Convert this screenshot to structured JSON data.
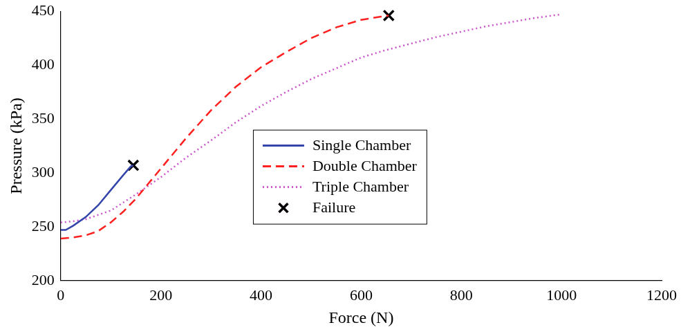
{
  "chart_data": {
    "type": "line",
    "x_label": "Force (N)",
    "y_label": "Pressure (kPa)",
    "xlim": [
      0,
      1200
    ],
    "xticks": [
      0,
      200,
      400,
      600,
      800,
      1000,
      1200
    ],
    "ylim": [
      200,
      450
    ],
    "yticks": [
      200,
      250,
      300,
      350,
      400,
      450
    ],
    "grid": false,
    "legend": "center",
    "series": [
      {
        "name": "Single Chamber",
        "color": "#3344aa",
        "line_style": "solid",
        "x": [
          0,
          10,
          25,
          50,
          75,
          100,
          125,
          140,
          145
        ],
        "values": [
          247,
          247,
          251,
          259,
          270,
          284,
          298,
          306,
          307
        ]
      },
      {
        "name": "Double Chamber",
        "color": "#ff2020",
        "line_style": "dashed",
        "x": [
          0,
          25,
          50,
          75,
          100,
          125,
          150,
          175,
          200,
          250,
          300,
          350,
          400,
          450,
          500,
          550,
          600,
          640,
          655
        ],
        "values": [
          239,
          240,
          242,
          246,
          254,
          264,
          276,
          290,
          304,
          332,
          358,
          380,
          398,
          412,
          425,
          435,
          442,
          445,
          446
        ]
      },
      {
        "name": "Triple Chamber",
        "color": "#cc55cc",
        "line_style": "dotted",
        "x": [
          0,
          25,
          50,
          100,
          150,
          200,
          250,
          300,
          350,
          400,
          450,
          500,
          550,
          600,
          650,
          700,
          750,
          800,
          850,
          900,
          950,
          1000
        ],
        "values": [
          254,
          255,
          257,
          265,
          280,
          296,
          314,
          330,
          347,
          362,
          375,
          387,
          397,
          407,
          414,
          420,
          426,
          431,
          436,
          440,
          444,
          447
        ]
      },
      {
        "name": "Failure",
        "color": "#000000",
        "type": "scatter",
        "marker": "x",
        "x": [
          145,
          655
        ],
        "values": [
          307,
          446
        ]
      }
    ]
  }
}
